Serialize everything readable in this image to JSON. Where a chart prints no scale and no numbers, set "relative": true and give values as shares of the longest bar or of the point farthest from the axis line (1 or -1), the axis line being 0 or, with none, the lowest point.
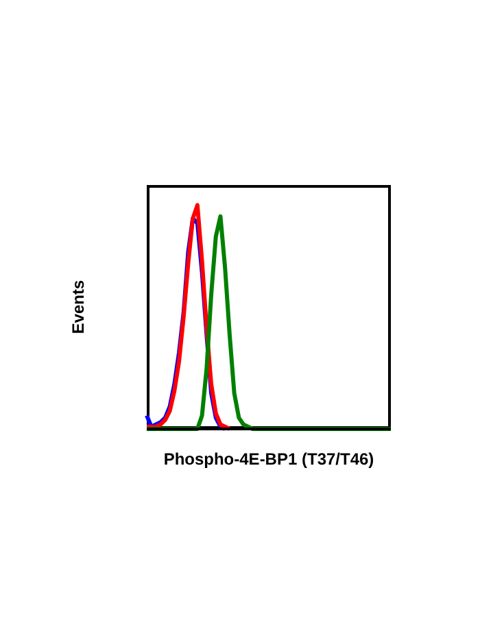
{
  "chart_data": {
    "type": "line",
    "relative": true,
    "xlabel": "Phospho-4E-BP1 (T37/T46)",
    "ylabel": "Events",
    "marker": "none",
    "line_style": "solid",
    "categories": [
      null,
      null,
      null,
      null,
      null,
      null,
      null,
      null,
      null,
      null,
      null,
      null,
      null,
      null,
      null,
      null,
      null,
      null,
      null,
      null,
      null,
      null,
      null,
      null,
      null,
      null,
      null,
      null,
      null,
      null,
      null,
      null,
      null,
      null,
      null,
      null,
      null,
      null,
      null,
      null,
      null,
      null,
      null,
      null,
      null,
      null,
      null,
      null,
      null,
      null,
      null,
      null,
      null,
      null
    ],
    "series": [
      {
        "color": "#0000ff",
        "values": [
          0.06,
          0.01,
          0.02,
          0.03,
          0.05,
          0.1,
          0.2,
          0.34,
          0.52,
          0.79,
          0.94,
          0.92,
          0.7,
          0.42,
          0.16,
          0.05,
          0.01,
          0,
          null,
          null,
          null,
          null,
          null,
          null,
          null,
          null,
          null,
          null,
          null,
          null,
          null,
          null,
          null,
          null,
          null,
          null,
          null,
          null,
          null,
          null,
          null,
          null,
          null,
          null,
          null,
          null,
          null,
          null,
          null,
          null,
          null,
          null,
          null,
          null
        ]
      },
      {
        "color": "#ff0000",
        "values": [
          0.01,
          0.01,
          0.01,
          0.02,
          0.04,
          0.08,
          0.17,
          0.3,
          0.5,
          0.74,
          0.94,
          1,
          0.75,
          0.45,
          0.2,
          0.07,
          0.02,
          0.01,
          0,
          null,
          null,
          null,
          null,
          null,
          null,
          null,
          null,
          null,
          null,
          null,
          null,
          null,
          null,
          null,
          null,
          null,
          null,
          null,
          null,
          null,
          null,
          null,
          null,
          null,
          null,
          null,
          null,
          null,
          null,
          null,
          null,
          null,
          null,
          null
        ]
      },
      {
        "color": "#008000",
        "values": [
          0,
          0,
          0,
          0,
          0,
          0,
          0,
          0,
          0,
          0,
          0,
          0,
          0.06,
          0.27,
          0.6,
          0.86,
          0.95,
          0.72,
          0.42,
          0.16,
          0.05,
          0.02,
          0.01,
          0,
          0,
          0,
          0,
          0,
          0,
          0,
          0,
          0,
          0,
          0,
          0,
          0,
          0,
          0,
          0,
          0,
          0,
          0,
          0,
          0,
          0,
          0,
          0,
          0,
          0,
          0,
          0,
          0,
          0,
          0
        ]
      }
    ]
  }
}
